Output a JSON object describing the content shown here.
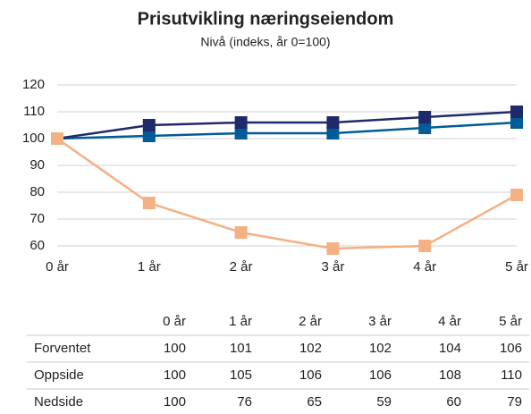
{
  "chart_data": {
    "type": "line",
    "title": "Prisutvikling næringseiendom",
    "subtitle": "Nivå (indeks, år 0=100)",
    "categories": [
      "0 år",
      "1 år",
      "2 år",
      "3 år",
      "4 år",
      "5 år"
    ],
    "series": [
      {
        "name": "Forventet",
        "color": "#005b96",
        "values": [
          100,
          101,
          102,
          102,
          104,
          106
        ]
      },
      {
        "name": "Oppside",
        "color": "#1f2a6b",
        "values": [
          100,
          105,
          106,
          106,
          108,
          110
        ]
      },
      {
        "name": "Nedside",
        "color": "#f4b183",
        "values": [
          100,
          76,
          65,
          59,
          60,
          79
        ]
      }
    ],
    "ylim": [
      60,
      120
    ],
    "yticks": [
      60,
      70,
      80,
      90,
      100,
      110,
      120
    ],
    "grid": true
  }
}
